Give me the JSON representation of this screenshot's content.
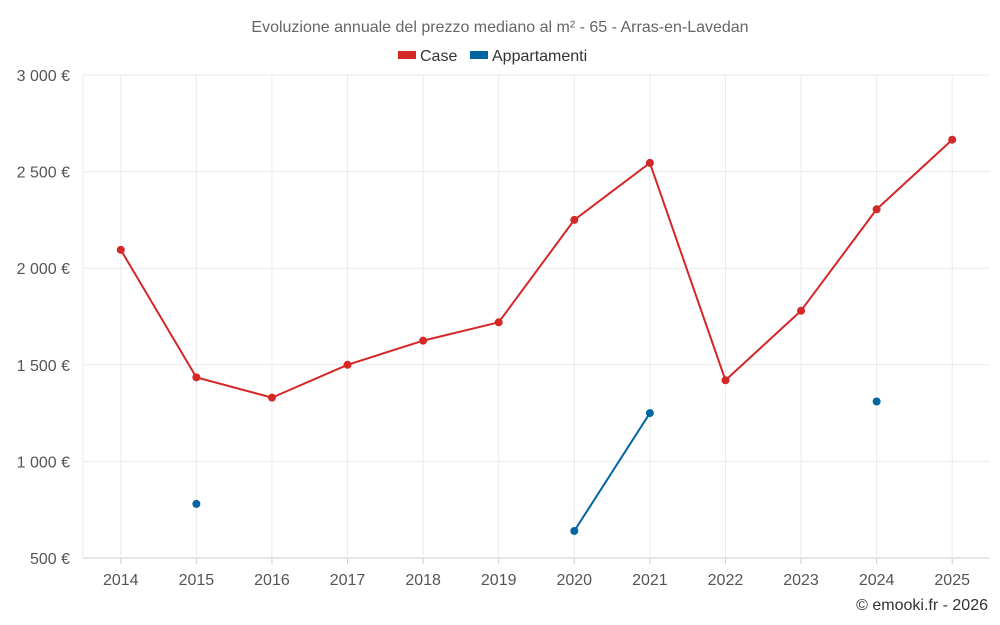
{
  "chart_data": {
    "type": "line",
    "title": "Evoluzione annuale del prezzo mediano al m² - 65 - Arras-en-Lavedan",
    "categories": [
      "2014",
      "2015",
      "2016",
      "2017",
      "2018",
      "2019",
      "2020",
      "2021",
      "2022",
      "2023",
      "2024",
      "2025"
    ],
    "ylim": [
      500,
      3000
    ],
    "yticks": [
      500,
      1000,
      1500,
      2000,
      2500,
      3000
    ],
    "ytick_labels": [
      "500 €",
      "1 000 €",
      "1 500 €",
      "2 000 €",
      "2 500 €",
      "3 000 €"
    ],
    "grid": true,
    "legend_position": "top-center",
    "series": [
      {
        "name": "Case",
        "color": "#d62728",
        "values": [
          2095,
          1435,
          1330,
          1500,
          1625,
          1720,
          2250,
          2545,
          1420,
          1780,
          2305,
          2665
        ]
      },
      {
        "name": "Appartamenti",
        "color": "#0066a1",
        "values": [
          null,
          780,
          null,
          null,
          null,
          null,
          640,
          1250,
          null,
          null,
          1310,
          null
        ]
      }
    ],
    "credit": "© emooki.fr - 2026"
  }
}
